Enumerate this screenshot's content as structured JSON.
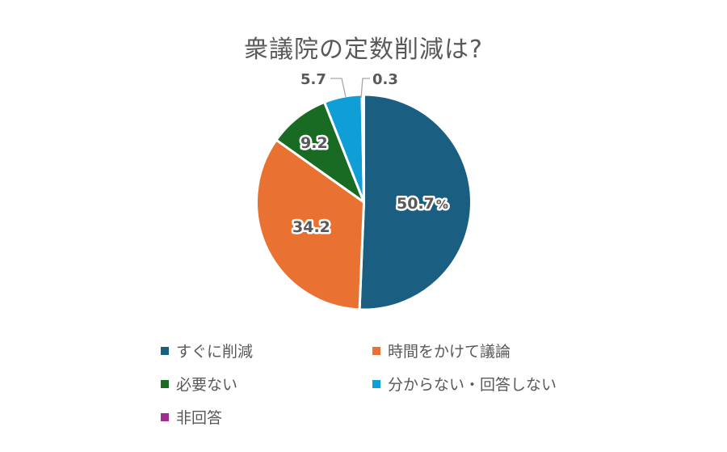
{
  "title": "衆議院の定数削減は?",
  "chart_data": {
    "type": "pie",
    "title": "衆議院の定数削減は?",
    "unit": "%",
    "categories": [
      "すぐに削減",
      "時間をかけて議論",
      "必要ない",
      "分からない・回答しない",
      "非回答"
    ],
    "values": [
      50.7,
      34.2,
      9.2,
      5.7,
      0.3
    ],
    "colors": [
      "#1a5f82",
      "#e97131",
      "#196b24",
      "#0f9ed5",
      "#a02b93"
    ],
    "data_labels": [
      "50.7%",
      "34.2",
      "9.2",
      "5.7",
      "0.3"
    ],
    "legend_position": "bottom",
    "start_angle": "12 o'clock, clockwise"
  },
  "labels": {
    "s0": "50.7",
    "s0_unit": "%",
    "s1": "34.2",
    "s2": "9.2",
    "s3": "5.7",
    "s4": "0.3"
  },
  "legend": [
    {
      "label": "すぐに削減",
      "color": "#1a5f82"
    },
    {
      "label": "時間をかけて議論",
      "color": "#e97131"
    },
    {
      "label": "必要ない",
      "color": "#196b24"
    },
    {
      "label": "分からない・回答しない",
      "color": "#0f9ed5"
    },
    {
      "label": "非回答",
      "color": "#a02b93"
    }
  ]
}
